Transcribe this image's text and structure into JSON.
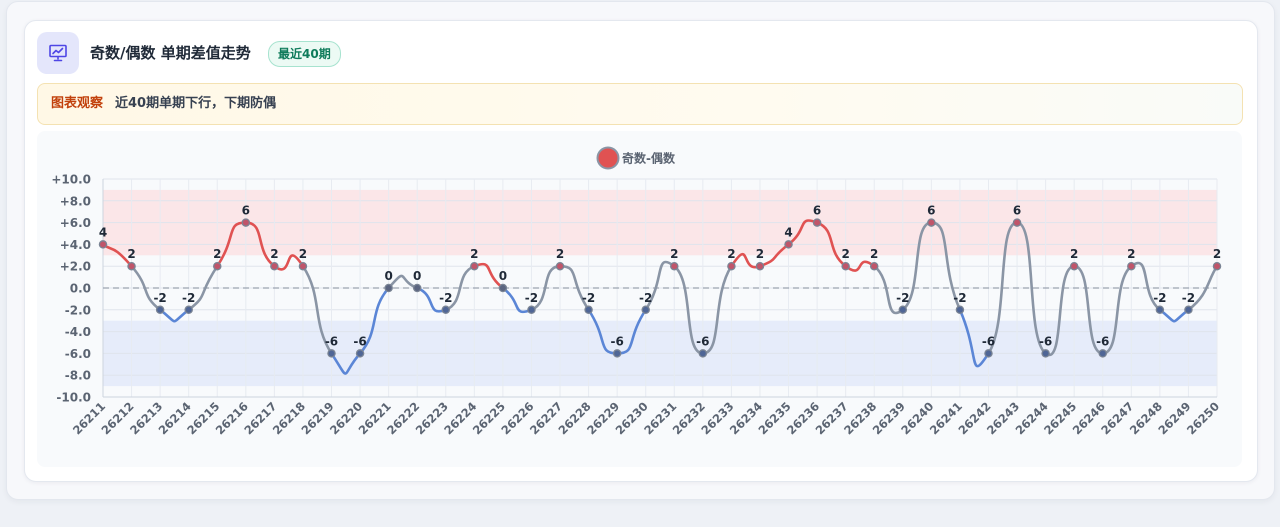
{
  "header": {
    "title": "奇数/偶数 单期差值走势",
    "badge": "最近40期",
    "icon": "presentation-chart-icon"
  },
  "insight": {
    "label": "图表观察",
    "text": "近40期单期下行，下期防偶"
  },
  "colors": {
    "positive": "#e05252",
    "negative": "#5b86d6",
    "neutral": "#8a95a5",
    "upper_band": "#fbe3e6",
    "lower_band": "#e3eafa"
  },
  "chart_data": {
    "type": "line",
    "legend": [
      "奇数-偶数"
    ],
    "legend_position": "top-center",
    "x": [
      "26211",
      "26212",
      "26213",
      "26214",
      "26215",
      "26216",
      "26217",
      "26218",
      "26219",
      "26220",
      "26221",
      "26222",
      "26223",
      "26224",
      "26225",
      "26226",
      "26227",
      "26228",
      "26229",
      "26230",
      "26231",
      "26232",
      "26233",
      "26234",
      "26235",
      "26236",
      "26237",
      "26238",
      "26239",
      "26240",
      "26241",
      "26242",
      "26243",
      "26244",
      "26245",
      "26246",
      "26247",
      "26248",
      "26249",
      "26250"
    ],
    "series": [
      {
        "name": "奇数-偶数",
        "values": [
          4,
          2,
          -2,
          -2,
          2,
          6,
          2,
          2,
          -6,
          -6,
          0,
          0,
          -2,
          2,
          0,
          -2,
          2,
          -2,
          -6,
          -2,
          2,
          -6,
          2,
          2,
          4,
          6,
          2,
          2,
          -2,
          6,
          -2,
          -6,
          6,
          -6,
          2,
          -6,
          2,
          -2,
          -2,
          2
        ]
      }
    ],
    "ylim": [
      -10,
      10
    ],
    "yticks": [
      "+10.0",
      "+8.0",
      "+6.0",
      "+4.0",
      "+2.0",
      "0.0",
      "-2.0",
      "-4.0",
      "-6.0",
      "-8.0",
      "-10.0"
    ],
    "bands": {
      "upper": [
        3,
        9
      ],
      "lower": [
        -9,
        -3
      ]
    },
    "zero_line": "dashed",
    "grid": true
  }
}
